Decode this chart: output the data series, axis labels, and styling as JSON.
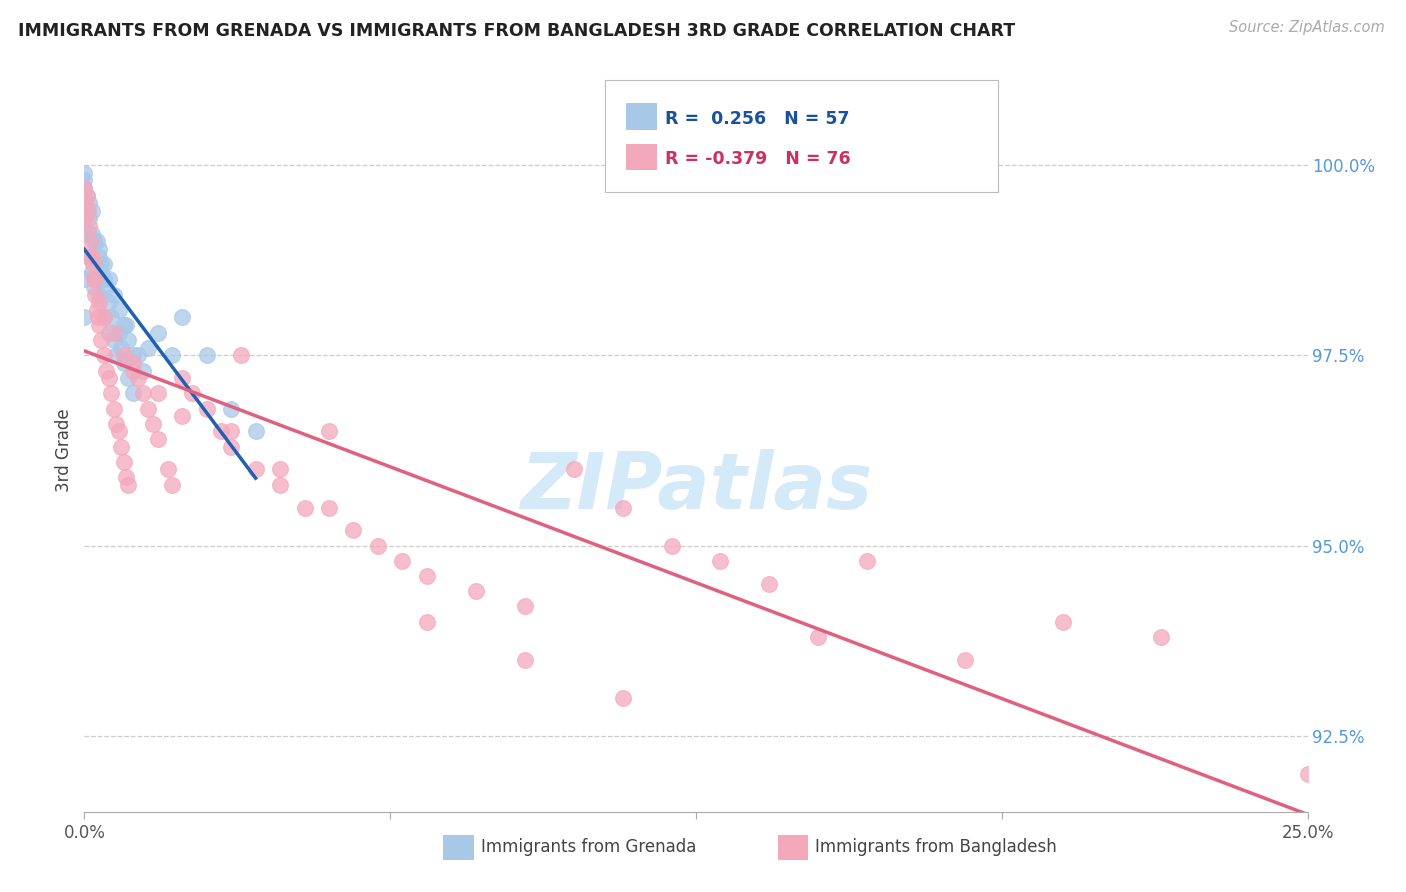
{
  "title": "IMMIGRANTS FROM GRENADA VS IMMIGRANTS FROM BANGLADESH 3RD GRADE CORRELATION CHART",
  "source": "Source: ZipAtlas.com",
  "ylabel_label": "3rd Grade",
  "legend_blue_r": "R =  0.256",
  "legend_blue_n": "N = 57",
  "legend_pink_r": "R = -0.379",
  "legend_pink_n": "N = 76",
  "legend_blue_label": "Immigrants from Grenada",
  "legend_pink_label": "Immigrants from Bangladesh",
  "blue_color": "#A8C8E8",
  "pink_color": "#F4A8BC",
  "blue_line_color": "#2060B0",
  "pink_line_color": "#E06080",
  "watermark_color": "#D0E8F8",
  "xlim": [
    0.0,
    25.0
  ],
  "ylim": [
    91.5,
    101.0
  ],
  "ytick_vals": [
    92.5,
    95.0,
    97.5,
    100.0
  ],
  "blue_scatter_x": [
    0.0,
    0.0,
    0.0,
    0.0,
    0.0,
    0.0,
    0.0,
    0.0,
    0.0,
    0.0,
    0.1,
    0.1,
    0.1,
    0.15,
    0.15,
    0.2,
    0.2,
    0.25,
    0.25,
    0.3,
    0.3,
    0.35,
    0.4,
    0.4,
    0.45,
    0.5,
    0.5,
    0.55,
    0.6,
    0.65,
    0.7,
    0.75,
    0.8,
    0.85,
    0.9,
    1.0,
    1.1,
    1.2,
    1.3,
    1.5,
    1.8,
    2.0,
    2.5,
    3.0,
    3.5,
    0.05,
    0.1,
    0.15,
    0.2,
    0.3,
    0.4,
    0.5,
    0.6,
    0.7,
    0.8,
    0.9,
    1.0
  ],
  "blue_scatter_y": [
    99.9,
    99.8,
    99.7,
    99.6,
    99.5,
    99.3,
    99.2,
    99.1,
    98.5,
    98.0,
    99.5,
    99.1,
    98.8,
    99.4,
    98.6,
    99.0,
    98.4,
    99.0,
    98.5,
    98.8,
    98.3,
    98.7,
    98.5,
    98.0,
    98.4,
    98.2,
    97.8,
    98.0,
    97.7,
    97.5,
    97.8,
    97.6,
    97.4,
    97.9,
    97.2,
    97.0,
    97.5,
    97.3,
    97.6,
    97.8,
    97.5,
    98.0,
    97.5,
    96.8,
    96.5,
    99.6,
    99.3,
    99.1,
    99.0,
    98.9,
    98.7,
    98.5,
    98.3,
    98.1,
    97.9,
    97.7,
    97.5
  ],
  "pink_scatter_x": [
    0.0,
    0.0,
    0.0,
    0.05,
    0.08,
    0.1,
    0.12,
    0.15,
    0.18,
    0.2,
    0.22,
    0.25,
    0.28,
    0.3,
    0.35,
    0.4,
    0.45,
    0.5,
    0.55,
    0.6,
    0.65,
    0.7,
    0.75,
    0.8,
    0.85,
    0.9,
    1.0,
    1.1,
    1.2,
    1.3,
    1.4,
    1.5,
    1.7,
    1.8,
    2.0,
    2.2,
    2.5,
    2.8,
    3.0,
    3.2,
    3.5,
    4.0,
    4.5,
    5.0,
    5.5,
    6.0,
    6.5,
    7.0,
    8.0,
    9.0,
    10.0,
    11.0,
    12.0,
    13.0,
    14.0,
    15.0,
    16.0,
    18.0,
    20.0,
    22.0,
    0.1,
    0.2,
    0.3,
    0.4,
    0.6,
    0.8,
    1.0,
    1.5,
    2.0,
    3.0,
    4.0,
    5.0,
    7.0,
    9.0,
    11.0,
    25.0
  ],
  "pink_scatter_y": [
    99.7,
    99.5,
    99.3,
    99.6,
    99.4,
    99.2,
    99.0,
    98.8,
    98.7,
    98.5,
    98.3,
    98.1,
    98.0,
    97.9,
    97.7,
    97.5,
    97.3,
    97.2,
    97.0,
    96.8,
    96.6,
    96.5,
    96.3,
    96.1,
    95.9,
    95.8,
    97.4,
    97.2,
    97.0,
    96.8,
    96.6,
    96.4,
    96.0,
    95.8,
    97.2,
    97.0,
    96.8,
    96.5,
    96.3,
    97.5,
    96.0,
    95.8,
    95.5,
    96.5,
    95.2,
    95.0,
    94.8,
    94.6,
    94.4,
    94.2,
    96.0,
    95.5,
    95.0,
    94.8,
    94.5,
    93.8,
    94.8,
    93.5,
    94.0,
    93.8,
    98.8,
    98.5,
    98.2,
    98.0,
    97.8,
    97.5,
    97.3,
    97.0,
    96.7,
    96.5,
    96.0,
    95.5,
    94.0,
    93.5,
    93.0,
    92.0
  ]
}
